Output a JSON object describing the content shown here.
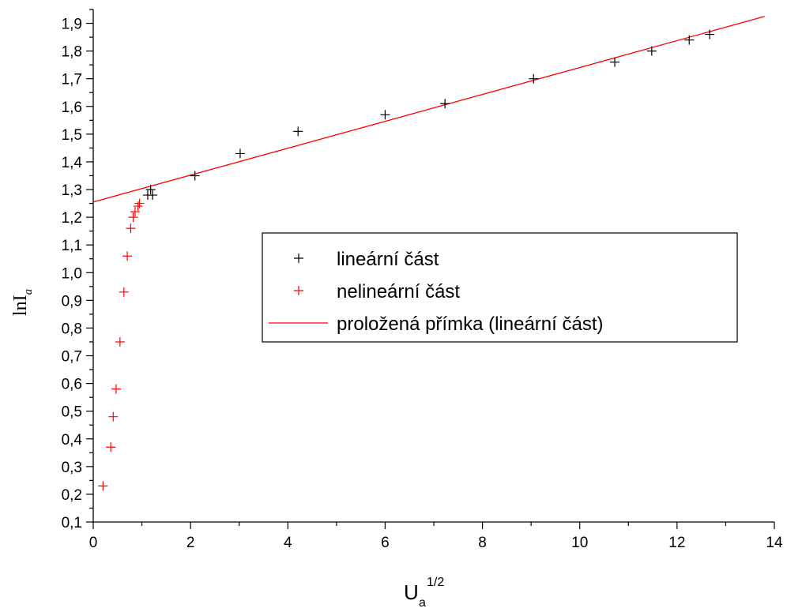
{
  "chart_data": {
    "type": "scatter",
    "title": "",
    "xlabel": "U",
    "xlabel_sub": "a",
    "xlabel_sup": "1/2",
    "ylabel": "lnI",
    "ylabel_sub": "a",
    "xlim": [
      0,
      14
    ],
    "ylim": [
      0.1,
      1.95
    ],
    "x_ticks": [
      0,
      2,
      4,
      6,
      8,
      10,
      12,
      14
    ],
    "x_tick_labels": [
      "0",
      "2",
      "4",
      "6",
      "8",
      "10",
      "12",
      "14"
    ],
    "y_ticks": [
      0.1,
      0.2,
      0.3,
      0.4,
      0.5,
      0.6,
      0.7,
      0.8,
      0.9,
      1.0,
      1.1,
      1.2,
      1.3,
      1.4,
      1.5,
      1.6,
      1.7,
      1.8,
      1.9
    ],
    "y_tick_labels": [
      "0,1",
      "0,2",
      "0,3",
      "0,4",
      "0,5",
      "0,6",
      "0,7",
      "0,8",
      "0,9",
      "1,0",
      "1,1",
      "1,2",
      "1,3",
      "1,4",
      "1,5",
      "1,6",
      "1,7",
      "1,8",
      "1,9"
    ],
    "grid": false,
    "legend_position": "center-right",
    "series": [
      {
        "name": "lineární část",
        "kind": "marker",
        "color": "#000000",
        "points": [
          [
            1.12,
            1.28
          ],
          [
            1.18,
            1.3
          ],
          [
            1.22,
            1.28
          ],
          [
            2.09,
            1.35
          ],
          [
            3.02,
            1.43
          ],
          [
            4.21,
            1.51
          ],
          [
            6.0,
            1.57
          ],
          [
            7.23,
            1.61
          ],
          [
            9.05,
            1.7
          ],
          [
            10.72,
            1.76
          ],
          [
            11.48,
            1.8
          ],
          [
            12.25,
            1.84
          ],
          [
            12.67,
            1.86
          ]
        ]
      },
      {
        "name": "nelineární část",
        "kind": "marker",
        "color": "#ff0000",
        "points": [
          [
            0.2,
            0.23
          ],
          [
            0.36,
            0.37
          ],
          [
            0.41,
            0.48
          ],
          [
            0.47,
            0.58
          ],
          [
            0.55,
            0.75
          ],
          [
            0.63,
            0.93
          ],
          [
            0.7,
            1.06
          ],
          [
            0.77,
            1.16
          ],
          [
            0.82,
            1.2
          ],
          [
            0.86,
            1.22
          ],
          [
            0.92,
            1.24
          ],
          [
            0.95,
            1.25
          ]
        ]
      },
      {
        "name": "proložená přímka (lineární část)",
        "kind": "line",
        "color": "#ff0000",
        "points": [
          [
            0,
            1.255
          ],
          [
            13.8,
            1.925
          ]
        ]
      }
    ]
  }
}
